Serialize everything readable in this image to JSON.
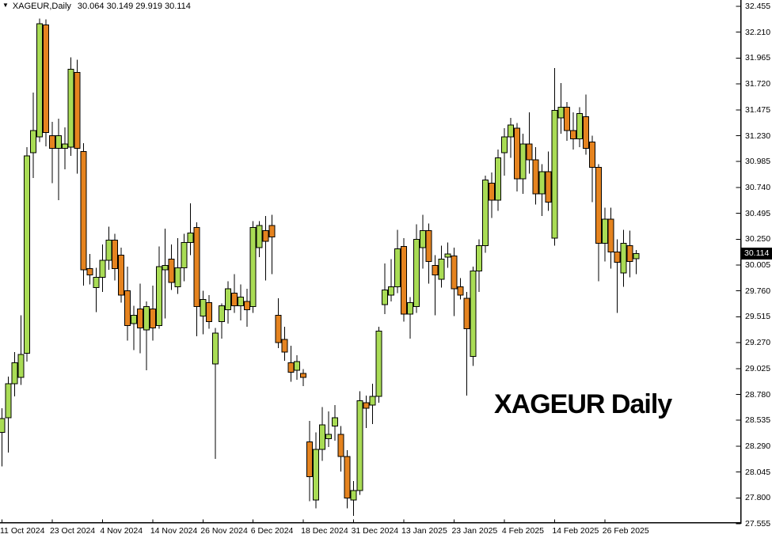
{
  "title_bar": {
    "collapse_icon": "▼",
    "symbol": "XAGEUR,Daily",
    "ohlc_line": "30.064 30.149 29.919 30.114"
  },
  "watermark": {
    "text": "XAGEUR Daily"
  },
  "price_scale": {
    "current_price": "30.114",
    "min": 27.555,
    "max": 32.455,
    "step": 0.245,
    "labels": [
      "32.455",
      "32.210",
      "31.965",
      "31.720",
      "31.475",
      "31.230",
      "30.985",
      "30.740",
      "30.495",
      "30.250",
      "30.005",
      "29.760",
      "29.515",
      "29.270",
      "29.025",
      "28.780",
      "28.535",
      "28.290",
      "28.045",
      "27.800",
      "27.555"
    ]
  },
  "time_scale": {
    "ticks": [
      {
        "index": 0,
        "label": "11 Oct 2024"
      },
      {
        "index": 8,
        "label": "23 Oct 2024"
      },
      {
        "index": 16,
        "label": "4 Nov 2024"
      },
      {
        "index": 24,
        "label": "14 Nov 2024"
      },
      {
        "index": 32,
        "label": "26 Nov 2024"
      },
      {
        "index": 40,
        "label": "6 Dec 2024"
      },
      {
        "index": 48,
        "label": "18 Dec 2024"
      },
      {
        "index": 56,
        "label": "31 Dec 2024"
      },
      {
        "index": 64,
        "label": "13 Jan 2025"
      },
      {
        "index": 72,
        "label": "23 Jan 2025"
      },
      {
        "index": 80,
        "label": "4 Feb 2025"
      },
      {
        "index": 88,
        "label": "14 Feb 2025"
      },
      {
        "index": 96,
        "label": "26 Feb 2025"
      }
    ]
  },
  "style": {
    "background": "#ffffff",
    "bull_color": "#a9dc55",
    "bear_color": "#e5831f",
    "candle_outline": "#000000",
    "wick_color": "#000000",
    "axis_color": "#000000",
    "text_color": "#000000",
    "current_price_bg": "#000000",
    "current_price_fg": "#ffffff"
  },
  "chart_data": {
    "type": "candlestick",
    "symbol": "XAGEUR",
    "timeframe": "Daily",
    "title": "XAGEUR Daily",
    "ylim": [
      27.555,
      32.455
    ],
    "ytick_step": 0.245,
    "grid": false,
    "legend": "none",
    "last_ohlc": {
      "open": 30.064,
      "high": 30.149,
      "low": 29.919,
      "close": 30.114
    },
    "columns": [
      "date",
      "open",
      "high",
      "low",
      "close"
    ],
    "candles": [
      [
        "11 Oct 2024",
        28.42,
        28.65,
        28.1,
        28.55
      ],
      [
        "14 Oct 2024",
        28.56,
        28.95,
        28.23,
        28.88
      ],
      [
        "15 Oct 2024",
        28.88,
        29.18,
        28.76,
        29.08
      ],
      [
        "16 Oct 2024",
        28.94,
        29.53,
        28.87,
        29.16
      ],
      [
        "17 Oct 2024",
        29.17,
        31.12,
        29.09,
        31.04
      ],
      [
        "18 Oct 2024",
        31.07,
        31.64,
        30.83,
        31.28
      ],
      [
        "21 Oct 2024",
        31.22,
        32.34,
        31.17,
        32.29
      ],
      [
        "22 Oct 2024",
        32.28,
        32.33,
        31.13,
        31.26
      ],
      [
        "23 Oct 2024",
        31.23,
        31.36,
        30.78,
        31.11
      ],
      [
        "24 Oct 2024",
        31.11,
        31.39,
        30.62,
        31.23
      ],
      [
        "25 Oct 2024",
        31.11,
        31.31,
        30.91,
        31.15
      ],
      [
        "28 Oct 2024",
        31.12,
        31.97,
        31.04,
        31.86
      ],
      [
        "29 Oct 2024",
        31.83,
        31.95,
        30.87,
        31.11
      ],
      [
        "30 Oct 2024",
        31.08,
        31.16,
        29.81,
        29.96
      ],
      [
        "31 Oct 2024",
        29.97,
        30.11,
        29.82,
        29.91
      ],
      [
        "1 Nov 2024",
        29.79,
        29.98,
        29.56,
        29.89
      ],
      [
        "4 Nov 2024",
        29.89,
        30.2,
        29.75,
        30.05
      ],
      [
        "5 Nov 2024",
        30.05,
        30.37,
        29.96,
        30.24
      ],
      [
        "6 Nov 2024",
        30.24,
        30.3,
        29.86,
        29.97
      ],
      [
        "7 Nov 2024",
        30.1,
        30.17,
        29.65,
        29.72
      ],
      [
        "8 Nov 2024",
        29.76,
        29.99,
        29.29,
        29.43
      ],
      [
        "11 Nov 2024",
        29.45,
        29.62,
        29.2,
        29.53
      ],
      [
        "12 Nov 2024",
        29.59,
        29.83,
        29.17,
        29.41
      ],
      [
        "13 Nov 2024",
        29.39,
        29.66,
        29.01,
        29.61
      ],
      [
        "14 Nov 2024",
        29.59,
        29.81,
        29.29,
        29.41
      ],
      [
        "15 Nov 2024",
        29.43,
        30.18,
        29.4,
        29.99
      ],
      [
        "18 Nov 2024",
        29.96,
        30.35,
        29.5,
        30.0
      ],
      [
        "19 Nov 2024",
        30.06,
        30.2,
        29.77,
        29.84
      ],
      [
        "20 Nov 2024",
        29.8,
        30.26,
        29.73,
        29.98
      ],
      [
        "21 Nov 2024",
        29.98,
        30.3,
        29.85,
        30.22
      ],
      [
        "22 Nov 2024",
        30.22,
        30.59,
        30.1,
        30.31
      ],
      [
        "25 Nov 2024",
        30.36,
        30.41,
        29.33,
        29.61
      ],
      [
        "26 Nov 2024",
        29.52,
        29.76,
        29.35,
        29.68
      ],
      [
        "27 Nov 2024",
        29.65,
        29.72,
        29.4,
        29.47
      ],
      [
        "28 Nov 2024",
        29.07,
        29.41,
        28.17,
        29.36
      ],
      [
        "29 Nov 2024",
        29.47,
        29.64,
        29.31,
        29.62
      ],
      [
        "2 Dec 2024",
        29.58,
        29.85,
        29.45,
        29.78
      ],
      [
        "3 Dec 2024",
        29.74,
        29.92,
        29.55,
        29.62
      ],
      [
        "4 Dec 2024",
        29.62,
        29.82,
        29.48,
        29.7
      ],
      [
        "5 Dec 2024",
        29.66,
        29.78,
        29.42,
        29.58
      ],
      [
        "6 Dec 2024",
        29.61,
        30.42,
        29.55,
        30.36
      ],
      [
        "9 Dec 2024",
        30.17,
        30.42,
        30.08,
        30.38
      ],
      [
        "10 Dec 2024",
        30.33,
        30.47,
        29.86,
        30.23
      ],
      [
        "11 Dec 2024",
        30.38,
        30.48,
        29.92,
        30.27
      ],
      [
        "12 Dec 2024",
        29.53,
        29.69,
        29.22,
        29.27
      ],
      [
        "13 Dec 2024",
        29.3,
        29.42,
        29.1,
        29.18
      ],
      [
        "16 Dec 2024",
        29.08,
        29.24,
        28.9,
        28.99
      ],
      [
        "17 Dec 2024",
        29.01,
        29.15,
        28.92,
        29.09
      ],
      [
        "18 Dec 2024",
        28.98,
        29.02,
        28.86,
        28.94
      ],
      [
        "19 Dec 2024",
        28.33,
        28.53,
        27.77,
        28.0
      ],
      [
        "20 Dec 2024",
        27.78,
        28.42,
        27.7,
        28.26
      ],
      [
        "23 Dec 2024",
        28.26,
        28.66,
        28.15,
        28.49
      ],
      [
        "24 Dec 2024",
        28.36,
        28.62,
        28.28,
        28.4
      ],
      [
        "26 Dec 2024",
        28.48,
        28.68,
        28.34,
        28.56
      ],
      [
        "27 Dec 2024",
        28.4,
        28.48,
        28.05,
        28.19
      ],
      [
        "30 Dec 2024",
        28.19,
        28.25,
        27.7,
        27.8
      ],
      [
        "31 Dec 2024",
        27.78,
        27.96,
        27.63,
        27.87
      ],
      [
        "2 Jan 2025",
        27.87,
        28.81,
        27.83,
        28.72
      ],
      [
        "3 Jan 2025",
        28.7,
        28.77,
        28.46,
        28.65
      ],
      [
        "6 Jan 2025",
        28.68,
        28.88,
        28.5,
        28.76
      ],
      [
        "7 Jan 2025",
        28.76,
        29.42,
        28.7,
        29.38
      ],
      [
        "8 Jan 2025",
        29.63,
        30.02,
        29.54,
        29.77
      ],
      [
        "9 Jan 2025",
        29.72,
        30.06,
        29.66,
        29.8
      ],
      [
        "10 Jan 2025",
        29.8,
        30.34,
        29.74,
        30.16
      ],
      [
        "13 Jan 2025",
        30.18,
        30.26,
        29.47,
        29.54
      ],
      [
        "14 Jan 2025",
        29.54,
        29.7,
        29.31,
        29.65
      ],
      [
        "15 Jan 2025",
        29.61,
        30.39,
        29.55,
        30.25
      ],
      [
        "16 Jan 2025",
        30.17,
        30.48,
        29.97,
        30.33
      ],
      [
        "17 Jan 2025",
        30.33,
        30.4,
        29.83,
        30.04
      ],
      [
        "20 Jan 2025",
        30.0,
        30.1,
        29.53,
        29.91
      ],
      [
        "21 Jan 2025",
        29.87,
        30.19,
        29.79,
        30.06
      ],
      [
        "22 Jan 2025",
        30.08,
        30.22,
        29.98,
        30.11
      ],
      [
        "23 Jan 2025",
        30.09,
        30.17,
        29.52,
        29.78
      ],
      [
        "24 Jan 2025",
        29.8,
        29.88,
        29.68,
        29.72
      ],
      [
        "27 Jan 2025",
        29.69,
        29.75,
        28.77,
        29.4
      ],
      [
        "28 Jan 2025",
        29.14,
        29.99,
        29.05,
        29.95
      ],
      [
        "29 Jan 2025",
        29.95,
        30.25,
        29.75,
        30.19
      ],
      [
        "30 Jan 2025",
        30.19,
        30.85,
        30.12,
        30.81
      ],
      [
        "31 Jan 2025",
        30.78,
        30.88,
        30.45,
        30.62
      ],
      [
        "3 Feb 2025",
        30.62,
        31.1,
        30.52,
        31.02
      ],
      [
        "4 Feb 2025",
        31.07,
        31.3,
        30.85,
        31.22
      ],
      [
        "5 Feb 2025",
        31.22,
        31.4,
        31.02,
        31.33
      ],
      [
        "6 Feb 2025",
        31.3,
        31.35,
        30.7,
        30.82
      ],
      [
        "7 Feb 2025",
        30.82,
        31.25,
        30.68,
        31.15
      ],
      [
        "10 Feb 2025",
        31.15,
        31.45,
        30.87,
        31.0
      ],
      [
        "11 Feb 2025",
        31.0,
        31.12,
        30.58,
        30.68
      ],
      [
        "12 Feb 2025",
        30.68,
        30.96,
        30.47,
        30.89
      ],
      [
        "13 Feb 2025",
        30.89,
        31.08,
        30.52,
        30.6
      ],
      [
        "14 Feb 2025",
        30.26,
        31.87,
        30.19,
        31.47
      ],
      [
        "17 Feb 2025",
        31.4,
        31.73,
        31.25,
        31.5
      ],
      [
        "18 Feb 2025",
        31.5,
        31.55,
        31.18,
        31.28
      ],
      [
        "19 Feb 2025",
        31.28,
        31.45,
        31.1,
        31.2
      ],
      [
        "20 Feb 2025",
        31.2,
        31.5,
        31.12,
        31.44
      ],
      [
        "21 Feb 2025",
        31.41,
        31.62,
        31.05,
        31.11
      ],
      [
        "24 Feb 2025",
        31.17,
        31.23,
        30.6,
        30.93
      ],
      [
        "25 Feb 2025",
        30.93,
        30.96,
        29.85,
        30.21
      ],
      [
        "26 Feb 2025",
        30.21,
        30.55,
        30.04,
        30.44
      ],
      [
        "27 Feb 2025",
        30.44,
        30.55,
        29.97,
        30.13
      ],
      [
        "28 Feb 2025",
        30.13,
        30.25,
        29.55,
        30.03
      ],
      [
        "3 Mar 2025",
        29.93,
        30.34,
        29.8,
        30.21
      ],
      [
        "4 Mar 2025",
        30.19,
        30.33,
        29.89,
        30.04
      ],
      [
        "5 Mar 2025",
        30.064,
        30.149,
        29.919,
        30.114
      ]
    ]
  }
}
